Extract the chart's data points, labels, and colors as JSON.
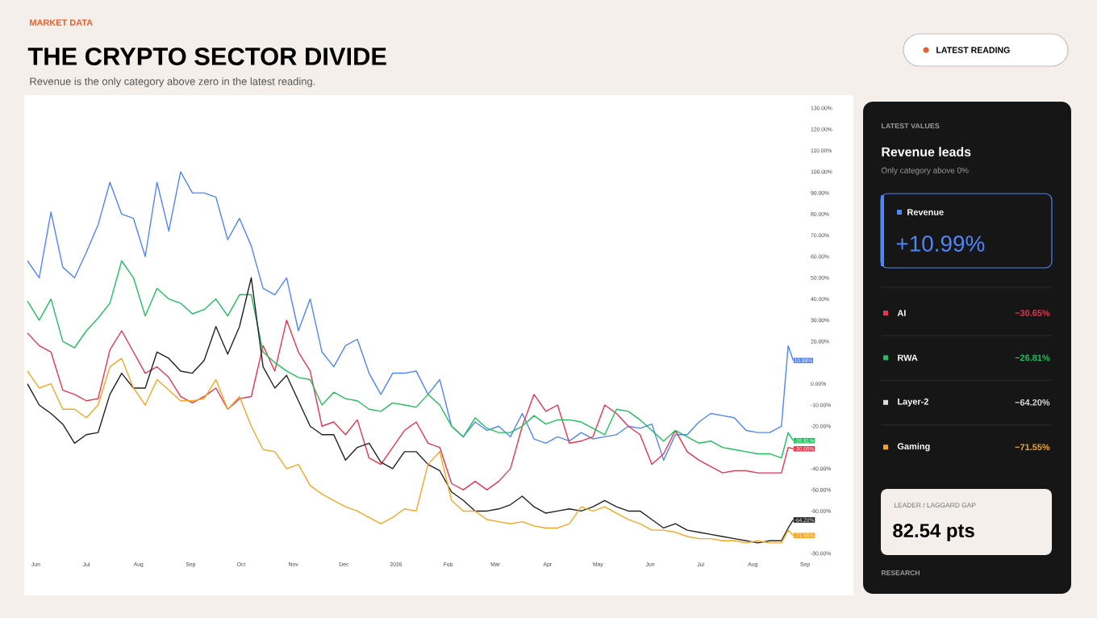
{
  "chart_data": [
    {
      "type": "line",
      "title": "THE CRYPTO SECTOR DIVIDE",
      "subtitle": "Revenue is the only category above zero in the latest reading.",
      "annotations": [
        "MARKET DATA",
        "LATEST READING"
      ],
      "x": [
        "2025-05-27",
        "2025-06-03",
        "2025-06-10",
        "2025-06-17",
        "2025-06-24",
        "2025-07-01",
        "2025-07-08",
        "2025-07-15",
        "2025-07-22",
        "2025-07-29",
        "2025-08-05",
        "2025-08-12",
        "2025-08-19",
        "2025-08-26",
        "2025-09-02",
        "2025-09-09",
        "2025-09-16",
        "2025-09-23",
        "2025-09-30",
        "2025-10-07",
        "2025-10-14",
        "2025-10-21",
        "2025-10-28",
        "2025-11-04",
        "2025-11-11",
        "2025-11-18",
        "2025-11-25",
        "2025-12-02",
        "2025-12-09",
        "2025-12-16",
        "2025-12-23",
        "2025-12-30",
        "2026-01-06",
        "2026-01-13",
        "2026-01-20",
        "2026-01-27",
        "2026-02-03",
        "2026-02-10",
        "2026-02-17",
        "2026-02-24",
        "2026-03-03",
        "2026-03-10",
        "2026-03-17",
        "2026-03-24",
        "2026-03-31",
        "2026-04-07",
        "2026-04-14",
        "2026-04-21",
        "2026-04-28",
        "2026-05-05",
        "2026-05-12",
        "2026-05-19",
        "2026-05-26",
        "2026-06-02",
        "2026-06-09",
        "2026-06-16",
        "2026-06-23",
        "2026-06-30",
        "2026-07-07",
        "2026-07-14",
        "2026-07-21",
        "2026-07-28",
        "2026-08-04",
        "2026-08-11",
        "2026-08-18",
        "2026-08-22",
        "2026-08-25"
      ],
      "series": [
        {
          "color": "#4f86f7",
          "values": [
            58,
            50,
            81,
            55,
            50,
            62,
            75,
            95,
            80,
            78,
            60,
            95,
            72,
            100,
            90,
            90,
            88,
            68,
            78,
            65,
            45,
            42,
            50,
            25,
            40,
            15,
            8,
            18,
            21,
            5,
            -5,
            5,
            5,
            6,
            -5,
            2,
            -20,
            -25,
            -18,
            -22,
            -20,
            -25,
            -14,
            -26,
            -28,
            -25,
            -27,
            -23,
            -26,
            -25,
            -24,
            -20,
            -21,
            -19,
            -36,
            -24,
            -24,
            -18,
            -14,
            -15,
            -16,
            -22,
            -23,
            -23,
            -20,
            18,
            10.99
          ],
          "value_labels": [
            null,
            null,
            null,
            null,
            null,
            null,
            null,
            null,
            null,
            null,
            null,
            null,
            null,
            null,
            null,
            null,
            null,
            null,
            null,
            null,
            null,
            null,
            null,
            null,
            null,
            null,
            null,
            null,
            null,
            null,
            null,
            null,
            null,
            null,
            null,
            null,
            null,
            null,
            null,
            null,
            null,
            null,
            null,
            null,
            null,
            null,
            null,
            null,
            null,
            null,
            null,
            null,
            null,
            null,
            null,
            null,
            null,
            null,
            null,
            null,
            null,
            null,
            null,
            null,
            null,
            null,
            "10.99%"
          ]
        },
        {
          "color": "#e8344e",
          "values": [
            24,
            18,
            15,
            -3,
            -5,
            -8,
            -7,
            16,
            25,
            15,
            5,
            8,
            3,
            -6,
            -9,
            -6,
            -2,
            -12,
            -7,
            -6,
            18,
            6,
            30,
            15,
            6,
            -20,
            -18,
            -24,
            -17,
            -35,
            -38,
            -30,
            -22,
            -18,
            -28,
            -30,
            -47,
            -50,
            -46,
            -50,
            -46,
            -40,
            -20,
            -5,
            -13,
            -10,
            -28,
            -27,
            -25,
            -10,
            -14,
            -20,
            -24,
            -38,
            -33,
            -22,
            -32,
            -36,
            -39,
            -42,
            -41,
            -41,
            -42,
            -42,
            -42,
            -30,
            -30.65
          ],
          "value_labels": [
            null,
            null,
            null,
            null,
            null,
            null,
            null,
            null,
            null,
            null,
            null,
            null,
            null,
            null,
            null,
            null,
            null,
            null,
            null,
            null,
            null,
            null,
            null,
            null,
            null,
            null,
            null,
            null,
            null,
            null,
            null,
            null,
            null,
            null,
            null,
            null,
            null,
            null,
            null,
            null,
            null,
            null,
            null,
            null,
            null,
            null,
            null,
            null,
            null,
            null,
            null,
            null,
            null,
            null,
            null,
            null,
            null,
            null,
            null,
            null,
            null,
            null,
            null,
            null,
            null,
            null,
            "-30.65%"
          ]
        },
        {
          "color": "#1fbf5f",
          "values": [
            39,
            30,
            40,
            20,
            17,
            25,
            31,
            38,
            58,
            50,
            32,
            45,
            40,
            38,
            33,
            35,
            40,
            32,
            42,
            42,
            15,
            10,
            6,
            3,
            2,
            -10,
            -4,
            -7,
            -8,
            -12,
            -13,
            -9,
            -10,
            -11,
            -5,
            -10,
            -20,
            -25,
            -16,
            -21,
            -23,
            -23,
            -20,
            -15,
            -19,
            -17,
            -17,
            -18,
            -21,
            -24,
            -12,
            -13,
            -17,
            -22,
            -27,
            -22,
            -25,
            -28,
            -27,
            -30,
            -31,
            -32,
            -33,
            -33,
            -35,
            -23,
            -26.81
          ],
          "value_labels": [
            null,
            null,
            null,
            null,
            null,
            null,
            null,
            null,
            null,
            null,
            null,
            null,
            null,
            null,
            null,
            null,
            null,
            null,
            null,
            null,
            null,
            null,
            null,
            null,
            null,
            null,
            null,
            null,
            null,
            null,
            null,
            null,
            null,
            null,
            null,
            null,
            null,
            null,
            null,
            null,
            null,
            null,
            null,
            null,
            null,
            null,
            null,
            null,
            null,
            null,
            null,
            null,
            null,
            null,
            null,
            null,
            null,
            null,
            null,
            null,
            null,
            null,
            null,
            null,
            null,
            null,
            "-26.81%"
          ]
        },
        {
          "color": "#222222",
          "values": [
            0,
            -10,
            -14,
            -19,
            -28,
            -24,
            -23,
            -5,
            5,
            -2,
            -2,
            15,
            12,
            6,
            5,
            11,
            27,
            14,
            27,
            50,
            8,
            -2,
            4,
            -8,
            -20,
            -24,
            -24,
            -36,
            -30,
            -28,
            -37,
            -40,
            -32,
            -32,
            -38,
            -41,
            -51,
            -55,
            -60,
            -60,
            -59,
            -57,
            -53,
            -58,
            -61,
            -60,
            -59,
            -60,
            -58,
            -55,
            -58,
            -60,
            -60,
            -64,
            -68,
            -66,
            -69,
            -70,
            -71,
            -72,
            -73,
            -74,
            -75,
            -74,
            -74,
            -68,
            -64.2
          ],
          "value_labels": [
            null,
            null,
            null,
            null,
            null,
            null,
            null,
            null,
            null,
            null,
            null,
            null,
            null,
            null,
            null,
            null,
            null,
            null,
            null,
            null,
            null,
            null,
            null,
            null,
            null,
            null,
            null,
            null,
            null,
            null,
            null,
            null,
            null,
            null,
            null,
            null,
            null,
            null,
            null,
            null,
            null,
            null,
            null,
            null,
            null,
            null,
            null,
            null,
            null,
            null,
            null,
            null,
            null,
            null,
            null,
            null,
            null,
            null,
            null,
            null,
            null,
            null,
            null,
            null,
            null,
            null,
            "-64.20%"
          ]
        },
        {
          "color": "#f5a623",
          "values": [
            6,
            -2,
            0,
            -12,
            -12,
            -16,
            -10,
            8,
            12,
            -2,
            -10,
            2,
            -3,
            -8,
            -8,
            -7,
            2,
            -12,
            -6,
            -20,
            -31,
            -32,
            -40,
            -38,
            -48,
            -52,
            -55,
            -58,
            -60,
            -63,
            -66,
            -63,
            -59,
            -60,
            -38,
            -32,
            -55,
            -60,
            -60,
            -64,
            -65,
            -66,
            -65,
            -67,
            -68,
            -68,
            -66,
            -58,
            -60,
            -58,
            -61,
            -64,
            -66,
            -69,
            -69,
            -70,
            -72,
            -73,
            -73,
            -74,
            -74,
            -75,
            -74,
            -75,
            -75,
            -69,
            -71.55
          ],
          "value_labels": [
            null,
            null,
            null,
            null,
            null,
            null,
            null,
            null,
            null,
            null,
            null,
            null,
            null,
            null,
            null,
            null,
            null,
            null,
            null,
            null,
            null,
            null,
            null,
            null,
            null,
            null,
            null,
            null,
            null,
            null,
            null,
            null,
            null,
            null,
            null,
            null,
            null,
            null,
            null,
            null,
            null,
            null,
            null,
            null,
            null,
            null,
            null,
            null,
            null,
            null,
            null,
            null,
            null,
            null,
            null,
            null,
            null,
            null,
            null,
            null,
            null,
            null,
            null,
            null,
            null,
            null,
            "-71.55%"
          ]
        }
      ],
      "xlim": [
        "2025-05-27",
        "2026-09-01"
      ],
      "xticks": [
        {
          "value": "2025-06-01",
          "label": "Jun"
        },
        {
          "value": "2025-07-01",
          "label": "Jul"
        },
        {
          "value": "2025-08-01",
          "label": "Aug"
        },
        {
          "value": "2025-09-01",
          "label": "Sep"
        },
        {
          "value": "2025-10-01",
          "label": "Oct"
        },
        {
          "value": "2025-11-01",
          "label": "Nov"
        },
        {
          "value": "2025-12-01",
          "label": "Dec"
        },
        {
          "value": "2026-01-01",
          "label": "2026"
        },
        {
          "value": "2026-02-01",
          "label": "Feb"
        },
        {
          "value": "2026-03-01",
          "label": "Mar"
        },
        {
          "value": "2026-04-01",
          "label": "Apr"
        },
        {
          "value": "2026-05-01",
          "label": "May"
        },
        {
          "value": "2026-06-01",
          "label": "Jun"
        },
        {
          "value": "2026-07-01",
          "label": "Jul"
        },
        {
          "value": "2026-08-01",
          "label": "Aug"
        },
        {
          "value": "2026-09-01",
          "label": "Sep"
        }
      ],
      "ylim": [
        -80,
        130
      ],
      "yticks": [
        {
          "value": 130,
          "label": "130.00%"
        },
        {
          "value": 120,
          "label": "120.00%"
        },
        {
          "value": 110,
          "label": "110.00%"
        },
        {
          "value": 100,
          "label": "100.00%"
        },
        {
          "value": 90,
          "label": "90.00%"
        },
        {
          "value": 80,
          "label": "80.00%"
        },
        {
          "value": 70,
          "label": "70.00%"
        },
        {
          "value": 60,
          "label": "60.00%"
        },
        {
          "value": 50,
          "label": "50.00%"
        },
        {
          "value": 40,
          "label": "40.00%"
        },
        {
          "value": 30,
          "label": "30.00%"
        },
        {
          "value": 20,
          "label": "20.00%"
        },
        {
          "value": 0,
          "label": "0.00%"
        },
        {
          "value": -10,
          "label": "-10.00%"
        },
        {
          "value": -20,
          "label": "-20.00%"
        },
        {
          "value": -40,
          "label": "-40.00%"
        },
        {
          "value": -50,
          "label": "-50.00%"
        },
        {
          "value": -60,
          "label": "-60.00%"
        },
        {
          "value": -80,
          "label": "-80.00%"
        }
      ]
    },
    {
      "type": "other",
      "title": "LATEST VALUES",
      "subtitle": "Revenue leads",
      "categories": [
        "Revenue",
        "AI",
        "RWA",
        "Layer-2",
        "Gaming"
      ],
      "value_labels": [
        "+10.99%",
        "−30.65%",
        "−26.81%",
        "−64.20%",
        "−71.55%"
      ],
      "colors": [
        "#4f86f7",
        "#e8344e",
        "#1fbf5f",
        "#dddddd",
        "#f5a623"
      ],
      "annotations": [
        "Only category above 0%",
        "LEADER / LAGGARD GAP",
        "82.54 pts",
        "RESEARCH"
      ]
    }
  ]
}
